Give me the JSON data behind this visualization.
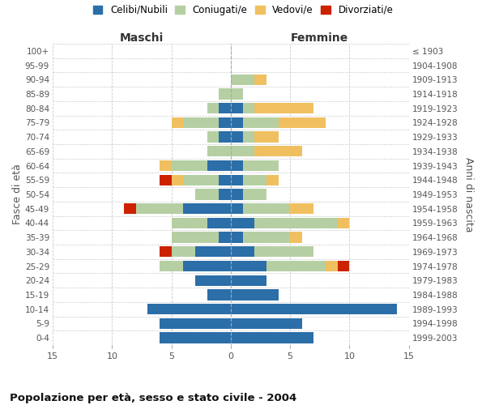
{
  "age_groups_bottom_to_top": [
    "0-4",
    "5-9",
    "10-14",
    "15-19",
    "20-24",
    "25-29",
    "30-34",
    "35-39",
    "40-44",
    "45-49",
    "50-54",
    "55-59",
    "60-64",
    "65-69",
    "70-74",
    "75-79",
    "80-84",
    "85-89",
    "90-94",
    "95-99",
    "100+"
  ],
  "birth_years_bottom_to_top": [
    "1999-2003",
    "1994-1998",
    "1989-1993",
    "1984-1988",
    "1979-1983",
    "1974-1978",
    "1969-1973",
    "1964-1968",
    "1959-1963",
    "1954-1958",
    "1949-1953",
    "1944-1948",
    "1939-1943",
    "1934-1938",
    "1929-1933",
    "1924-1928",
    "1919-1923",
    "1914-1918",
    "1909-1913",
    "1904-1908",
    "≤ 1903"
  ],
  "maschi": {
    "celibi": [
      6,
      6,
      7,
      2,
      3,
      4,
      3,
      1,
      2,
      4,
      1,
      1,
      2,
      0,
      1,
      1,
      1,
      0,
      0,
      0,
      0
    ],
    "coniugati": [
      0,
      0,
      0,
      0,
      0,
      2,
      2,
      4,
      3,
      4,
      2,
      3,
      3,
      2,
      1,
      3,
      1,
      1,
      0,
      0,
      0
    ],
    "vedovi": [
      0,
      0,
      0,
      0,
      0,
      0,
      0,
      0,
      0,
      0,
      0,
      1,
      1,
      0,
      0,
      1,
      0,
      0,
      0,
      0,
      0
    ],
    "divorziati": [
      0,
      0,
      0,
      0,
      0,
      0,
      1,
      0,
      0,
      1,
      0,
      1,
      0,
      0,
      0,
      0,
      0,
      0,
      0,
      0,
      0
    ]
  },
  "femmine": {
    "nubili": [
      7,
      6,
      14,
      4,
      3,
      3,
      2,
      1,
      2,
      1,
      1,
      1,
      1,
      0,
      1,
      1,
      1,
      0,
      0,
      0,
      0
    ],
    "coniugate": [
      0,
      0,
      0,
      0,
      0,
      5,
      5,
      4,
      7,
      4,
      2,
      2,
      3,
      2,
      1,
      3,
      1,
      1,
      2,
      0,
      0
    ],
    "vedove": [
      0,
      0,
      0,
      0,
      0,
      1,
      0,
      1,
      1,
      2,
      0,
      1,
      0,
      4,
      2,
      4,
      5,
      0,
      1,
      0,
      0
    ],
    "divorziate": [
      0,
      0,
      0,
      0,
      0,
      1,
      0,
      0,
      0,
      0,
      0,
      0,
      0,
      0,
      0,
      0,
      0,
      0,
      0,
      0,
      0
    ]
  },
  "color_celibi": "#2b6ea8",
  "color_coniugati": "#b5cfa3",
  "color_vedovi": "#f0c060",
  "color_divorziati": "#cc2200",
  "title": "Popolazione per età, sesso e stato civile - 2004",
  "xlabel_left": "Maschi",
  "xlabel_right": "Femmine",
  "ylabel_left": "Fasce di età",
  "ylabel_right": "Anni di nascita",
  "xlim": 15,
  "bg_color": "#ffffff",
  "grid_color": "#cccccc",
  "legend_labels": [
    "Celibi/Nubili",
    "Coniugati/e",
    "Vedovi/e",
    "Divorziati/e"
  ]
}
